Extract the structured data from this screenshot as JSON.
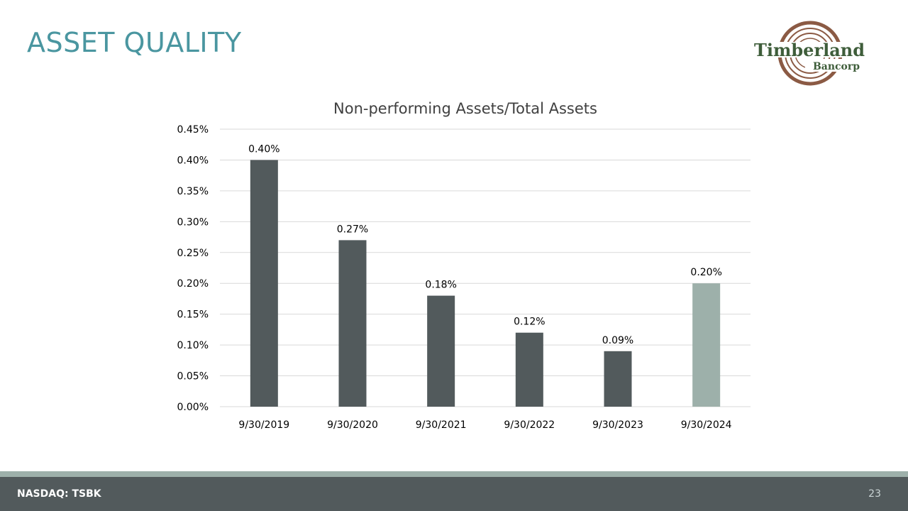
{
  "slide": {
    "title": "ASSET QUALITY",
    "footer_left": "NASDAQ: TSBK",
    "page_number": "23"
  },
  "logo": {
    "line1": "Timberland",
    "line2": "Bancorp",
    "text_color": "#3e5d3a",
    "ring_color": "#8b5a44"
  },
  "colors": {
    "title": "#4a96a0",
    "bar_primary": "#525a5c",
    "bar_highlight": "#9db0aa",
    "footer_bar": "#525a5c",
    "footer_stripe": "#9db0aa",
    "gridline": "#d9d9d9"
  },
  "chart_data": {
    "type": "bar",
    "title": "Non-performing Assets/Total Assets",
    "categories": [
      "9/30/2019",
      "9/30/2020",
      "9/30/2021",
      "9/30/2022",
      "9/30/2023",
      "9/30/2024"
    ],
    "values": [
      0.4,
      0.27,
      0.18,
      0.12,
      0.09,
      0.2
    ],
    "data_labels": [
      "0.40%",
      "0.27%",
      "0.18%",
      "0.12%",
      "0.09%",
      "0.20%"
    ],
    "highlight_index": 5,
    "ylim": [
      0,
      0.45
    ],
    "yticks": [
      0,
      0.05,
      0.1,
      0.15,
      0.2,
      0.25,
      0.3,
      0.35,
      0.4,
      0.45
    ],
    "ytick_labels": [
      "0.00%",
      "0.05%",
      "0.10%",
      "0.15%",
      "0.20%",
      "0.25%",
      "0.30%",
      "0.35%",
      "0.40%",
      "0.45%"
    ],
    "grid": true,
    "legend": "none"
  }
}
